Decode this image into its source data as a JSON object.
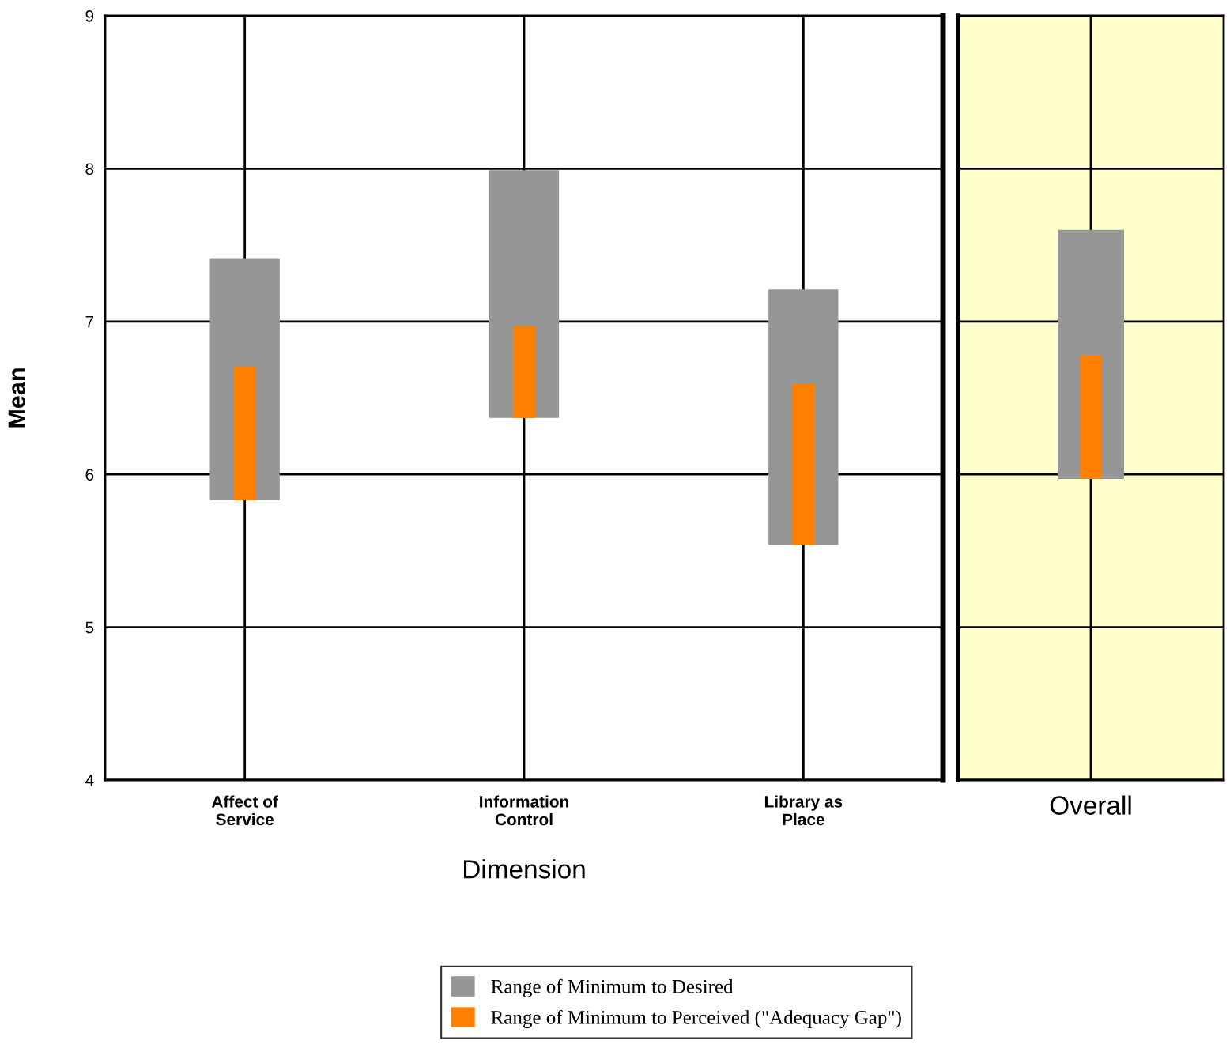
{
  "chart_data": [
    {
      "type": "bar",
      "xlabel": "Dimension",
      "ylabel": "Mean",
      "categories": [
        "Affect of\nService",
        "Information\nControl",
        "Library as\nPlace"
      ],
      "series": [
        {
          "name": "Range of Minimum to Desired",
          "color": "#969696",
          "values": [
            1.58,
            1.62,
            1.67
          ],
          "base": [
            5.83,
            6.37,
            5.54
          ]
        },
        {
          "name": "Range of Minimum to Perceived (\"Adequacy Gap\")",
          "color": "#ff8000",
          "values": [
            0.88,
            0.6,
            1.05
          ],
          "base": [
            5.83,
            6.37,
            5.54
          ]
        }
      ],
      "ylim": [
        4,
        9
      ],
      "yticks": [
        4,
        5,
        6,
        7,
        8,
        9
      ],
      "grid": true,
      "legend": "bottom"
    },
    {
      "type": "bar",
      "categories": [
        "Overall"
      ],
      "series": [
        {
          "color": "#969696",
          "values": [
            1.63
          ],
          "base": [
            5.97
          ]
        },
        {
          "color": "#ff8000",
          "values": [
            0.81
          ],
          "base": [
            5.97
          ]
        }
      ],
      "ylim": [
        4,
        9
      ],
      "yticks": [
        4,
        5,
        6,
        7,
        8,
        9
      ],
      "grid": true,
      "tick_labels": "x",
      "bands": [
        {
          "axis": "y",
          "from": 4,
          "to": 9,
          "color": "#ffffcc"
        }
      ]
    }
  ]
}
